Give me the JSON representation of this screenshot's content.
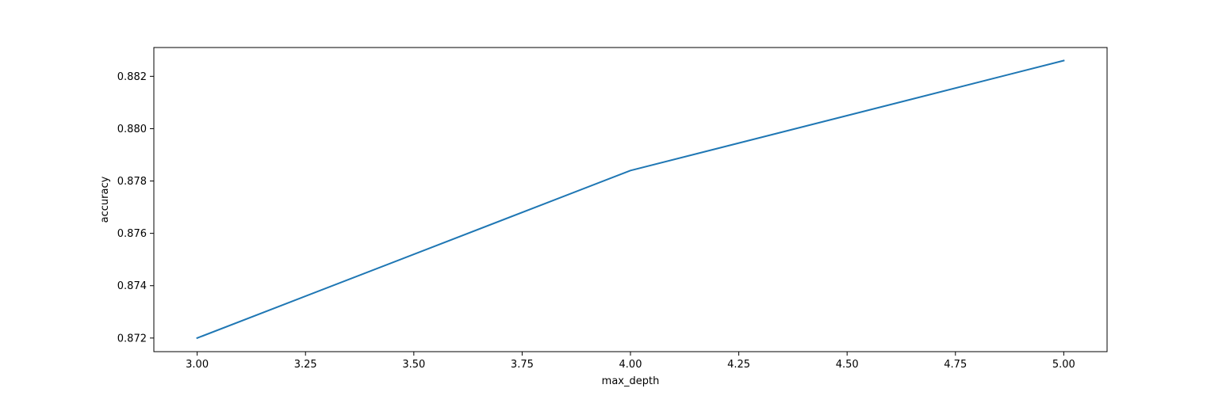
{
  "chart_data": {
    "type": "line",
    "title": "",
    "xlabel": "max_depth",
    "ylabel": "accuracy",
    "xlim": [
      2.9,
      5.1
    ],
    "ylim": [
      0.87148,
      0.8831
    ],
    "xticks": [
      3.0,
      3.25,
      3.5,
      3.75,
      4.0,
      4.25,
      4.5,
      4.75,
      5.0
    ],
    "xtick_labels": [
      "3.00",
      "3.25",
      "3.50",
      "3.75",
      "4.00",
      "4.25",
      "4.50",
      "4.75",
      "5.00"
    ],
    "yticks": [
      0.872,
      0.874,
      0.876,
      0.878,
      0.88,
      0.882
    ],
    "ytick_labels": [
      "0.872",
      "0.874",
      "0.876",
      "0.878",
      "0.880",
      "0.882"
    ],
    "grid": false,
    "series": [
      {
        "color": "#1f77b4",
        "x": [
          3,
          4,
          5
        ],
        "y": [
          0.872,
          0.8784,
          0.8826
        ]
      }
    ]
  }
}
